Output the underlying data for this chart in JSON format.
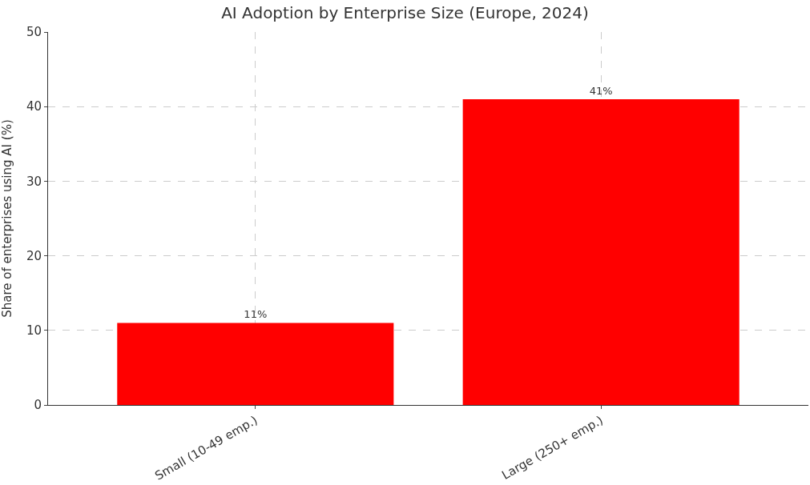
{
  "chart_data": {
    "type": "bar",
    "title": "AI Adoption by Enterprise Size (Europe, 2024)",
    "ylabel": "Share of enterprises using AI (%)",
    "categories": [
      "Small (10-49 emp.)",
      "Large (250+ emp.)"
    ],
    "values": [
      11,
      41
    ],
    "value_labels": [
      "11%",
      "41%"
    ],
    "color": "#ff0000",
    "ylim": [
      0,
      50
    ],
    "yticks": [
      0,
      10,
      20,
      30,
      40,
      50
    ],
    "grid": true
  }
}
